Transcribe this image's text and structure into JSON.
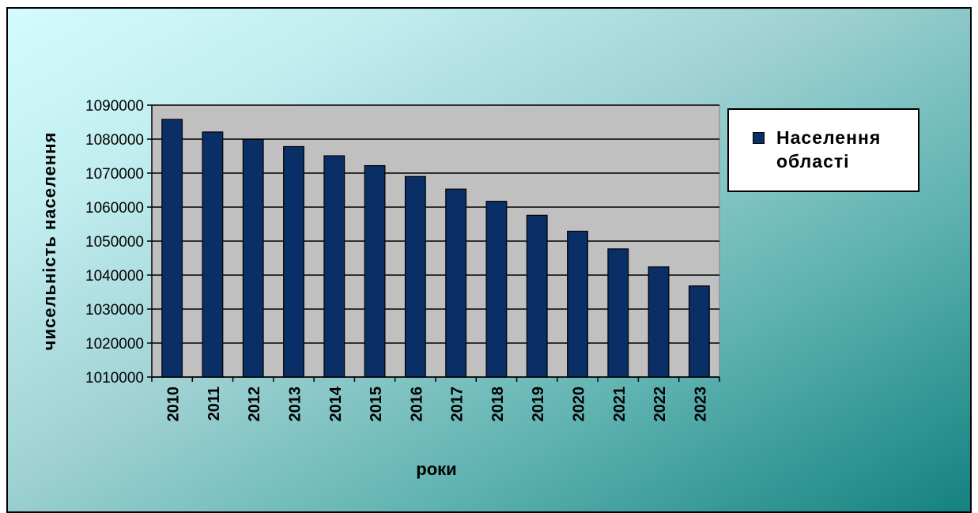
{
  "chart_data": {
    "type": "bar",
    "categories": [
      "2010",
      "2011",
      "2012",
      "2013",
      "2014",
      "2015",
      "2016",
      "2017",
      "2018",
      "2019",
      "2020",
      "2021",
      "2022",
      "2023"
    ],
    "series": [
      {
        "name": "Населення області",
        "values": [
          1085800,
          1082100,
          1079900,
          1077800,
          1075100,
          1072200,
          1069000,
          1065300,
          1061700,
          1057600,
          1052900,
          1047700,
          1042400,
          1036800
        ],
        "color": "#0a2e66"
      }
    ],
    "xlabel": "роки",
    "ylabel": "чисельність населення",
    "ylim": [
      1010000,
      1090000
    ],
    "yticks": [
      "1010000",
      "1020000",
      "1030000",
      "1040000",
      "1050000",
      "1060000",
      "1070000",
      "1080000",
      "1090000"
    ],
    "grid": true,
    "plot_background": "#c0c0c0",
    "legend_position": "right"
  }
}
